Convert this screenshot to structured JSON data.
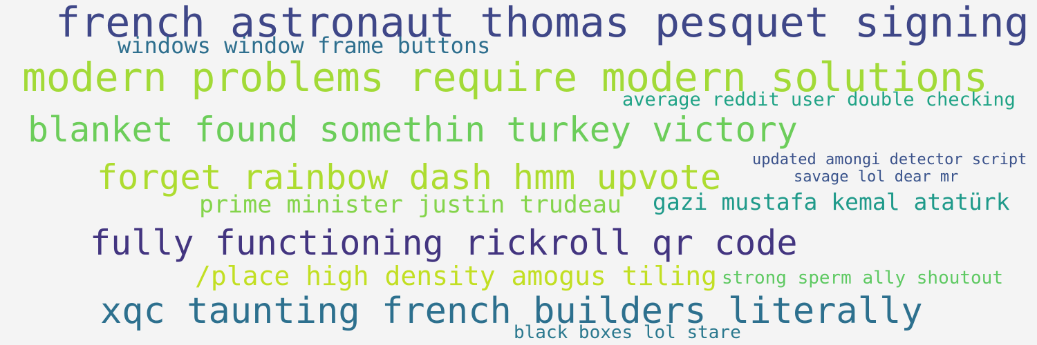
{
  "words": [
    {
      "text": "french astronaut thomas pesquet signing",
      "color": "#3f4788"
    },
    {
      "text": "windows window frame buttons",
      "color": "#2e6f8e"
    },
    {
      "text": "modern problems require modern solutions",
      "color": "#a2da37"
    },
    {
      "text": "average reddit user double checking",
      "color": "#20a386"
    },
    {
      "text": "blanket found somethin turkey victory",
      "color": "#6ccd5a"
    },
    {
      "text": "updated amongi detector script",
      "color": "#3b528b"
    },
    {
      "text": "forget rainbow dash hmm upvote",
      "color": "#addc30"
    },
    {
      "text": "savage lol dear mr",
      "color": "#3a548c"
    },
    {
      "text": "gazi mustafa kemal atatürk",
      "color": "#1f9a8a"
    },
    {
      "text": "prime minister justin trudeau",
      "color": "#84d44b"
    },
    {
      "text": "fully functioning rickroll qr code",
      "color": "#433580"
    },
    {
      "text": "/place high density amogus tiling",
      "color": "#c2df23"
    },
    {
      "text": "strong sperm ally shoutout",
      "color": "#5ec962"
    },
    {
      "text": "xqc taunting french builders literally",
      "color": "#2d708e"
    },
    {
      "text": "black boxes lol stare",
      "color": "#2a788e"
    }
  ]
}
